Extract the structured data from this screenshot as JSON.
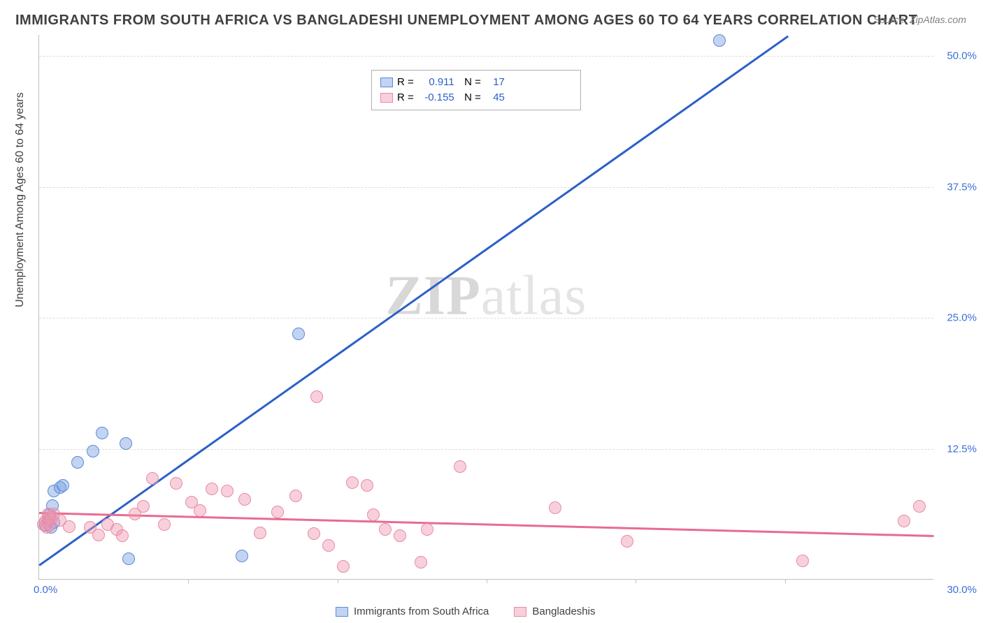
{
  "title": "IMMIGRANTS FROM SOUTH AFRICA VS BANGLADESHI UNEMPLOYMENT AMONG AGES 60 TO 64 YEARS CORRELATION CHART",
  "source": "Source: ZipAtlas.com",
  "ylabel": "Unemployment Among Ages 60 to 64 years",
  "watermark_a": "ZIP",
  "watermark_b": "atlas",
  "chart": {
    "type": "scatter",
    "xlim": [
      0,
      30
    ],
    "ylim": [
      0,
      52
    ],
    "yticks": [
      12.5,
      25.0,
      37.5,
      50.0
    ],
    "ytick_labels": [
      "12.5%",
      "25.0%",
      "37.5%",
      "50.0%"
    ],
    "xtick_marks": [
      5,
      10,
      15,
      20,
      25
    ],
    "xtick_left": "0.0%",
    "xtick_right": "30.0%",
    "grid_color": "#dcdcdc",
    "background_color": "#ffffff",
    "series": [
      {
        "name": "Immigrants from South Africa",
        "fill": "rgba(120,160,225,0.45)",
        "stroke": "#5a8ad8",
        "line_color": "#2b5fc8",
        "marker_radius": 9,
        "R": "0.911",
        "N": "17",
        "trend": {
          "x1": 0,
          "y1": 1.5,
          "x2": 25.1,
          "y2": 52
        },
        "points": [
          [
            0.2,
            5.2
          ],
          [
            0.3,
            5.6
          ],
          [
            0.35,
            6.2
          ],
          [
            0.4,
            5.0
          ],
          [
            0.45,
            7.1
          ],
          [
            0.5,
            5.5
          ],
          [
            0.5,
            8.5
          ],
          [
            0.7,
            8.8
          ],
          [
            0.8,
            9.0
          ],
          [
            1.3,
            11.2
          ],
          [
            1.8,
            12.3
          ],
          [
            2.1,
            14.0
          ],
          [
            2.9,
            13.0
          ],
          [
            3.0,
            2.0
          ],
          [
            6.8,
            2.3
          ],
          [
            8.7,
            23.5
          ],
          [
            22.8,
            51.5
          ]
        ]
      },
      {
        "name": "Bangladeshis",
        "fill": "rgba(240,150,175,0.45)",
        "stroke": "#e88aa5",
        "line_color": "#e86b92",
        "marker_radius": 9,
        "R": "-0.155",
        "N": "45",
        "trend": {
          "x1": 0,
          "y1": 6.5,
          "x2": 30,
          "y2": 4.3
        },
        "points": [
          [
            0.15,
            5.3
          ],
          [
            0.2,
            5.6
          ],
          [
            0.25,
            5.0
          ],
          [
            0.3,
            5.8
          ],
          [
            0.3,
            6.3
          ],
          [
            0.35,
            5.2
          ],
          [
            0.4,
            5.8
          ],
          [
            0.5,
            6.3
          ],
          [
            0.7,
            5.7
          ],
          [
            1.0,
            5.1
          ],
          [
            1.7,
            5.0
          ],
          [
            2.0,
            4.3
          ],
          [
            2.3,
            5.3
          ],
          [
            2.6,
            4.8
          ],
          [
            2.8,
            4.2
          ],
          [
            3.2,
            6.3
          ],
          [
            3.5,
            7.0
          ],
          [
            3.8,
            9.7
          ],
          [
            4.2,
            5.3
          ],
          [
            4.6,
            9.2
          ],
          [
            5.1,
            7.4
          ],
          [
            5.4,
            6.6
          ],
          [
            5.8,
            8.7
          ],
          [
            6.3,
            8.5
          ],
          [
            6.9,
            7.7
          ],
          [
            7.4,
            4.5
          ],
          [
            8.0,
            6.5
          ],
          [
            8.6,
            8.0
          ],
          [
            9.2,
            4.4
          ],
          [
            9.3,
            17.5
          ],
          [
            9.7,
            3.3
          ],
          [
            10.2,
            1.3
          ],
          [
            10.5,
            9.3
          ],
          [
            11.0,
            9.0
          ],
          [
            11.2,
            6.2
          ],
          [
            11.6,
            4.8
          ],
          [
            12.1,
            4.2
          ],
          [
            12.8,
            1.7
          ],
          [
            13.0,
            4.8
          ],
          [
            14.1,
            10.8
          ],
          [
            17.3,
            6.9
          ],
          [
            19.7,
            3.7
          ],
          [
            25.6,
            1.8
          ],
          [
            29.0,
            5.6
          ],
          [
            29.5,
            7.0
          ]
        ]
      }
    ]
  },
  "legend_bottom": [
    "Immigrants from South Africa",
    "Bangladeshis"
  ]
}
